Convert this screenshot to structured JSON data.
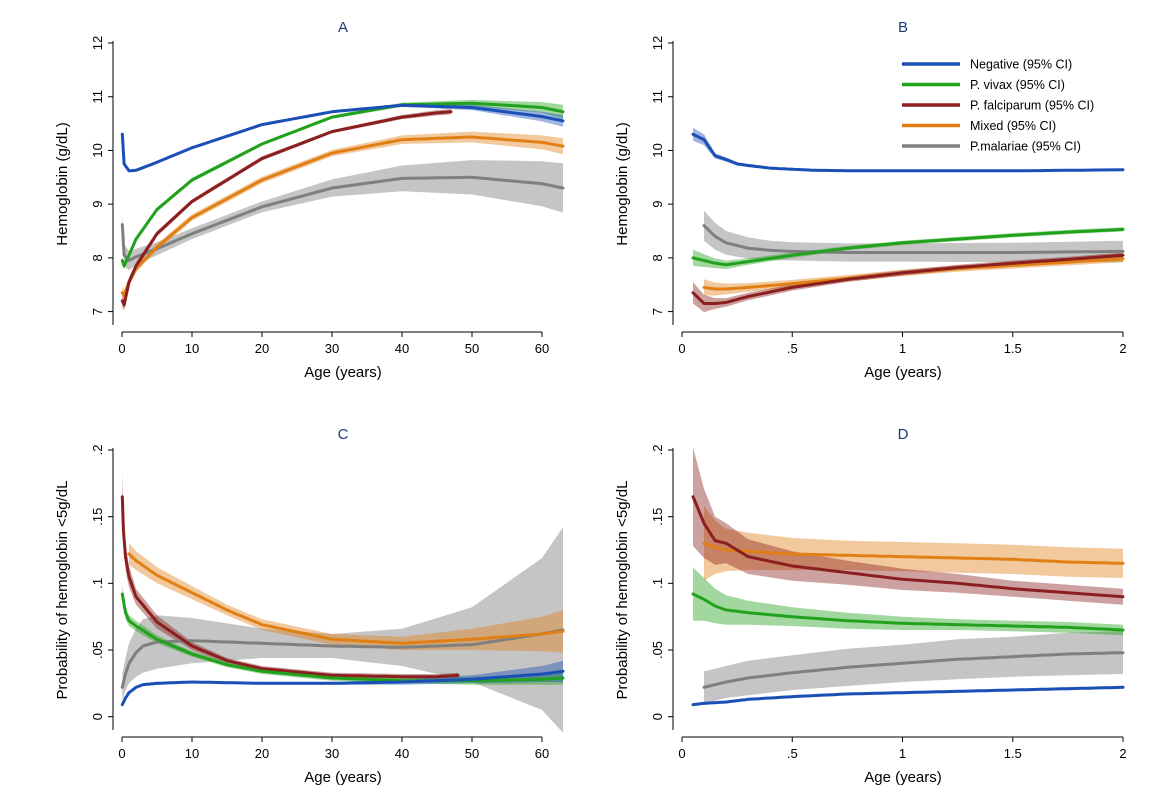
{
  "colors": {
    "Negative": "#1a4fb5",
    "P. vivax": "#22a11c",
    "P. falciparum": "#8b1f1f",
    "Mixed": "#e07f14",
    "P.malariae": "#7f7f7f"
  },
  "legend": {
    "placement": "top-right of panel B",
    "items": [
      {
        "key": "Negative",
        "label": "Negative (95% CI)"
      },
      {
        "key": "P. vivax",
        "label": "P. vivax (95% CI)"
      },
      {
        "key": "P. falciparum",
        "label": "P. falciparum (95% CI)"
      },
      {
        "key": "Mixed",
        "label": "Mixed (95% CI)"
      },
      {
        "key": "P.malariae",
        "label": "P.malariae (95% CI)"
      }
    ]
  },
  "chart_data": [
    {
      "panel": "A",
      "type": "line",
      "title": "A",
      "xlabel": "Age (years)",
      "ylabel": "Hemoglobin (g/dL)",
      "xlim": [
        0,
        63
      ],
      "ylim": [
        6.75,
        12
      ],
      "xticks": [
        "0",
        "10",
        "20",
        "30",
        "40",
        "50",
        "60"
      ],
      "xtick_values": [
        0,
        10,
        20,
        30,
        40,
        50,
        60
      ],
      "yticks": [
        "7",
        "8",
        "9",
        "10",
        "11",
        "12"
      ],
      "ytick_values": [
        7,
        8,
        9,
        10,
        11,
        12
      ],
      "grid": false,
      "series": [
        {
          "name": "Negative",
          "x": [
            0.05,
            0.3,
            1,
            2,
            5,
            10,
            20,
            30,
            40,
            50,
            60,
            63
          ],
          "y": [
            10.3,
            9.75,
            9.62,
            9.63,
            9.78,
            10.05,
            10.48,
            10.72,
            10.84,
            10.8,
            10.63,
            10.55
          ],
          "ci_half": [
            0.03,
            0.03,
            0.02,
            0.02,
            0.02,
            0.02,
            0.02,
            0.02,
            0.03,
            0.05,
            0.09,
            0.11
          ]
        },
        {
          "name": "P. vivax",
          "x": [
            0.05,
            0.3,
            1,
            2,
            5,
            10,
            20,
            30,
            40,
            50,
            60,
            63
          ],
          "y": [
            7.95,
            7.85,
            8.05,
            8.35,
            8.9,
            9.45,
            10.12,
            10.62,
            10.85,
            10.88,
            10.8,
            10.72
          ],
          "ci_half": [
            0.07,
            0.07,
            0.06,
            0.05,
            0.04,
            0.04,
            0.03,
            0.03,
            0.04,
            0.06,
            0.1,
            0.13
          ]
        },
        {
          "name": "P. falciparum",
          "x": [
            0.05,
            0.3,
            1,
            2,
            5,
            10,
            20,
            30,
            40,
            45,
            47
          ],
          "y": [
            7.2,
            7.12,
            7.55,
            7.85,
            8.45,
            9.05,
            9.85,
            10.35,
            10.62,
            10.7,
            10.72
          ],
          "ci_half": [
            0.12,
            0.1,
            0.08,
            0.06,
            0.05,
            0.04,
            0.04,
            0.03,
            0.04,
            0.05,
            0.05
          ]
        },
        {
          "name": "Mixed",
          "x": [
            0.05,
            0.3,
            1,
            2,
            5,
            10,
            20,
            30,
            40,
            50,
            60,
            63
          ],
          "y": [
            7.35,
            7.3,
            7.55,
            7.8,
            8.2,
            8.75,
            9.45,
            9.95,
            10.2,
            10.25,
            10.15,
            10.08
          ],
          "ci_half": [
            0.12,
            0.1,
            0.08,
            0.07,
            0.06,
            0.06,
            0.06,
            0.06,
            0.08,
            0.1,
            0.13,
            0.15
          ]
        },
        {
          "name": "P.malariae",
          "x": [
            0.05,
            0.3,
            1,
            2,
            5,
            10,
            20,
            30,
            40,
            50,
            60,
            63
          ],
          "y": [
            8.62,
            8.05,
            7.95,
            8.02,
            8.17,
            8.45,
            8.95,
            9.3,
            9.48,
            9.5,
            9.38,
            9.3
          ],
          "ci_half": [
            0.2,
            0.2,
            0.18,
            0.15,
            0.12,
            0.1,
            0.1,
            0.16,
            0.24,
            0.32,
            0.42,
            0.46
          ]
        }
      ]
    },
    {
      "panel": "B",
      "type": "line",
      "title": "B",
      "xlabel": "Age (years)",
      "ylabel": "Hemoglobin (g/dL)",
      "xlim": [
        0,
        2
      ],
      "ylim": [
        6.75,
        12
      ],
      "xticks": [
        "0",
        ".5",
        "1",
        "1.5",
        "2"
      ],
      "xtick_values": [
        0,
        0.5,
        1,
        1.5,
        2
      ],
      "yticks": [
        "7",
        "8",
        "9",
        "10",
        "11",
        "12"
      ],
      "ytick_values": [
        7,
        8,
        9,
        10,
        11,
        12
      ],
      "grid": false,
      "series": [
        {
          "name": "Negative",
          "x": [
            0.05,
            0.1,
            0.15,
            0.2,
            0.25,
            0.3,
            0.4,
            0.5,
            0.6,
            0.8,
            1,
            1.5,
            2
          ],
          "y": [
            10.3,
            10.2,
            9.9,
            9.83,
            9.75,
            9.72,
            9.67,
            9.65,
            9.63,
            9.62,
            9.62,
            9.62,
            9.64
          ],
          "ci_half": [
            0.12,
            0.1,
            0.05,
            0.04,
            0.03,
            0.03,
            0.02,
            0.02,
            0.02,
            0.02,
            0.02,
            0.02,
            0.02
          ]
        },
        {
          "name": "P. vivax",
          "x": [
            0.05,
            0.1,
            0.15,
            0.2,
            0.3,
            0.5,
            0.75,
            1,
            1.25,
            1.5,
            1.75,
            2
          ],
          "y": [
            8.0,
            7.95,
            7.9,
            7.87,
            7.93,
            8.05,
            8.18,
            8.28,
            8.35,
            8.42,
            8.48,
            8.53
          ],
          "ci_half": [
            0.15,
            0.12,
            0.09,
            0.08,
            0.06,
            0.05,
            0.04,
            0.04,
            0.04,
            0.04,
            0.04,
            0.04
          ]
        },
        {
          "name": "P. falciparum",
          "x": [
            0.05,
            0.1,
            0.15,
            0.2,
            0.3,
            0.5,
            0.75,
            1,
            1.25,
            1.5,
            1.75,
            2
          ],
          "y": [
            7.35,
            7.15,
            7.15,
            7.17,
            7.28,
            7.45,
            7.6,
            7.72,
            7.82,
            7.9,
            7.97,
            8.05
          ],
          "ci_half": [
            0.2,
            0.16,
            0.1,
            0.08,
            0.07,
            0.06,
            0.05,
            0.05,
            0.05,
            0.05,
            0.05,
            0.05
          ]
        },
        {
          "name": "Mixed",
          "x": [
            0.1,
            0.15,
            0.2,
            0.3,
            0.5,
            0.75,
            1,
            1.25,
            1.5,
            1.75,
            2
          ],
          "y": [
            7.45,
            7.42,
            7.42,
            7.45,
            7.52,
            7.62,
            7.72,
            7.8,
            7.86,
            7.92,
            7.98
          ],
          "ci_half": [
            0.15,
            0.12,
            0.1,
            0.08,
            0.07,
            0.06,
            0.06,
            0.06,
            0.06,
            0.06,
            0.06
          ]
        },
        {
          "name": "P.malariae",
          "x": [
            0.1,
            0.15,
            0.2,
            0.3,
            0.4,
            0.5,
            0.75,
            1,
            1.5,
            2
          ],
          "y": [
            8.6,
            8.4,
            8.28,
            8.18,
            8.14,
            8.12,
            8.1,
            8.1,
            8.1,
            8.12
          ],
          "ci_half": [
            0.28,
            0.25,
            0.22,
            0.2,
            0.18,
            0.17,
            0.17,
            0.17,
            0.18,
            0.2
          ]
        }
      ]
    },
    {
      "panel": "C",
      "type": "line",
      "title": "C",
      "xlabel": "Age (years)",
      "ylabel": "Probability of hemoglobin <5g/dL",
      "xlim": [
        0,
        63
      ],
      "ylim": [
        -0.01,
        0.2
      ],
      "xticks": [
        "0",
        "10",
        "20",
        "30",
        "40",
        "50",
        "60"
      ],
      "xtick_values": [
        0,
        10,
        20,
        30,
        40,
        50,
        60
      ],
      "yticks": [
        "0",
        ".05",
        ".1",
        ".15",
        ".2"
      ],
      "ytick_values": [
        0,
        0.05,
        0.1,
        0.15,
        0.2
      ],
      "grid": false,
      "series": [
        {
          "name": "Negative",
          "x": [
            0.05,
            0.5,
            1,
            2,
            3,
            5,
            10,
            20,
            30,
            40,
            50,
            60,
            63
          ],
          "y": [
            0.009,
            0.014,
            0.018,
            0.022,
            0.024,
            0.025,
            0.026,
            0.025,
            0.025,
            0.026,
            0.028,
            0.032,
            0.034
          ],
          "ci_half": [
            0.001,
            0.001,
            0.001,
            0.001,
            0.001,
            0.001,
            0.001,
            0.001,
            0.001,
            0.002,
            0.003,
            0.006,
            0.008
          ]
        },
        {
          "name": "P. vivax",
          "x": [
            0.05,
            0.5,
            1,
            2,
            5,
            10,
            15,
            20,
            30,
            40,
            50,
            60,
            63
          ],
          "y": [
            0.092,
            0.078,
            0.072,
            0.068,
            0.058,
            0.047,
            0.039,
            0.034,
            0.029,
            0.027,
            0.027,
            0.028,
            0.029
          ],
          "ci_half": [
            0.006,
            0.005,
            0.004,
            0.004,
            0.003,
            0.002,
            0.002,
            0.002,
            0.002,
            0.002,
            0.003,
            0.004,
            0.005
          ]
        },
        {
          "name": "P. falciparum",
          "x": [
            0.05,
            0.2,
            0.5,
            1,
            2,
            5,
            10,
            15,
            20,
            30,
            40,
            45,
            48
          ],
          "y": [
            0.165,
            0.14,
            0.12,
            0.105,
            0.09,
            0.071,
            0.053,
            0.042,
            0.036,
            0.031,
            0.03,
            0.03,
            0.031
          ],
          "ci_half": [
            0.018,
            0.014,
            0.01,
            0.008,
            0.006,
            0.005,
            0.003,
            0.002,
            0.002,
            0.002,
            0.002,
            0.002,
            0.002
          ]
        },
        {
          "name": "Mixed",
          "x": [
            1,
            2,
            5,
            10,
            15,
            20,
            30,
            40,
            50,
            60,
            63
          ],
          "y": [
            0.122,
            0.117,
            0.106,
            0.093,
            0.08,
            0.069,
            0.058,
            0.055,
            0.058,
            0.062,
            0.064
          ],
          "ci_half": [
            0.008,
            0.007,
            0.006,
            0.005,
            0.004,
            0.004,
            0.004,
            0.005,
            0.008,
            0.013,
            0.016
          ]
        },
        {
          "name": "P.malariae",
          "x": [
            0.05,
            0.5,
            1,
            2,
            3,
            5,
            10,
            20,
            30,
            40,
            50,
            60,
            63
          ],
          "y": [
            0.022,
            0.032,
            0.04,
            0.048,
            0.053,
            0.056,
            0.057,
            0.055,
            0.053,
            0.052,
            0.054,
            0.062,
            0.065
          ],
          "ci_half": [
            0.01,
            0.012,
            0.015,
            0.018,
            0.02,
            0.02,
            0.017,
            0.011,
            0.009,
            0.014,
            0.028,
            0.057,
            0.077
          ]
        }
      ]
    },
    {
      "panel": "D",
      "type": "line",
      "title": "D",
      "xlabel": "Age (years)",
      "ylabel": "Probability of hemoglobin <5g/dL",
      "xlim": [
        0,
        2
      ],
      "ylim": [
        -0.01,
        0.2
      ],
      "xticks": [
        "0",
        ".5",
        "1",
        "1.5",
        "2"
      ],
      "xtick_values": [
        0,
        0.5,
        1,
        1.5,
        2
      ],
      "yticks": [
        "0",
        ".05",
        ".1",
        ".15",
        ".2"
      ],
      "ytick_values": [
        0,
        0.05,
        0.1,
        0.15,
        0.2
      ],
      "grid": false,
      "series": [
        {
          "name": "Negative",
          "x": [
            0.05,
            0.1,
            0.2,
            0.3,
            0.5,
            0.75,
            1,
            1.25,
            1.5,
            1.75,
            2
          ],
          "y": [
            0.009,
            0.01,
            0.011,
            0.013,
            0.015,
            0.017,
            0.018,
            0.019,
            0.02,
            0.021,
            0.022
          ],
          "ci_half": [
            0.001,
            0.001,
            0.001,
            0.001,
            0.001,
            0.001,
            0.001,
            0.001,
            0.001,
            0.001,
            0.001
          ]
        },
        {
          "name": "P. vivax",
          "x": [
            0.05,
            0.1,
            0.15,
            0.2,
            0.3,
            0.5,
            0.75,
            1,
            1.25,
            1.5,
            1.75,
            2
          ],
          "y": [
            0.092,
            0.088,
            0.083,
            0.08,
            0.078,
            0.075,
            0.072,
            0.07,
            0.069,
            0.068,
            0.067,
            0.065
          ],
          "ci_half": [
            0.02,
            0.016,
            0.013,
            0.011,
            0.009,
            0.007,
            0.006,
            0.005,
            0.004,
            0.004,
            0.004,
            0.004
          ]
        },
        {
          "name": "P. falciparum",
          "x": [
            0.05,
            0.1,
            0.15,
            0.2,
            0.3,
            0.5,
            0.75,
            1,
            1.25,
            1.5,
            1.75,
            2
          ],
          "y": [
            0.165,
            0.145,
            0.132,
            0.13,
            0.12,
            0.113,
            0.108,
            0.103,
            0.1,
            0.096,
            0.093,
            0.09
          ],
          "ci_half": [
            0.037,
            0.026,
            0.018,
            0.015,
            0.013,
            0.011,
            0.009,
            0.008,
            0.007,
            0.006,
            0.006,
            0.006
          ]
        },
        {
          "name": "Mixed",
          "x": [
            0.1,
            0.15,
            0.2,
            0.3,
            0.5,
            0.75,
            1,
            1.25,
            1.5,
            1.75,
            2
          ],
          "y": [
            0.13,
            0.127,
            0.125,
            0.124,
            0.122,
            0.121,
            0.12,
            0.119,
            0.118,
            0.116,
            0.115
          ],
          "ci_half": [
            0.028,
            0.02,
            0.016,
            0.014,
            0.012,
            0.011,
            0.011,
            0.011,
            0.011,
            0.011,
            0.011
          ]
        },
        {
          "name": "P.malariae",
          "x": [
            0.1,
            0.15,
            0.2,
            0.3,
            0.5,
            0.75,
            1,
            1.25,
            1.5,
            1.75,
            2
          ],
          "y": [
            0.022,
            0.024,
            0.026,
            0.029,
            0.033,
            0.037,
            0.04,
            0.043,
            0.045,
            0.047,
            0.048
          ],
          "ci_half": [
            0.012,
            0.012,
            0.012,
            0.013,
            0.013,
            0.014,
            0.014,
            0.015,
            0.015,
            0.016,
            0.016
          ]
        }
      ]
    }
  ]
}
